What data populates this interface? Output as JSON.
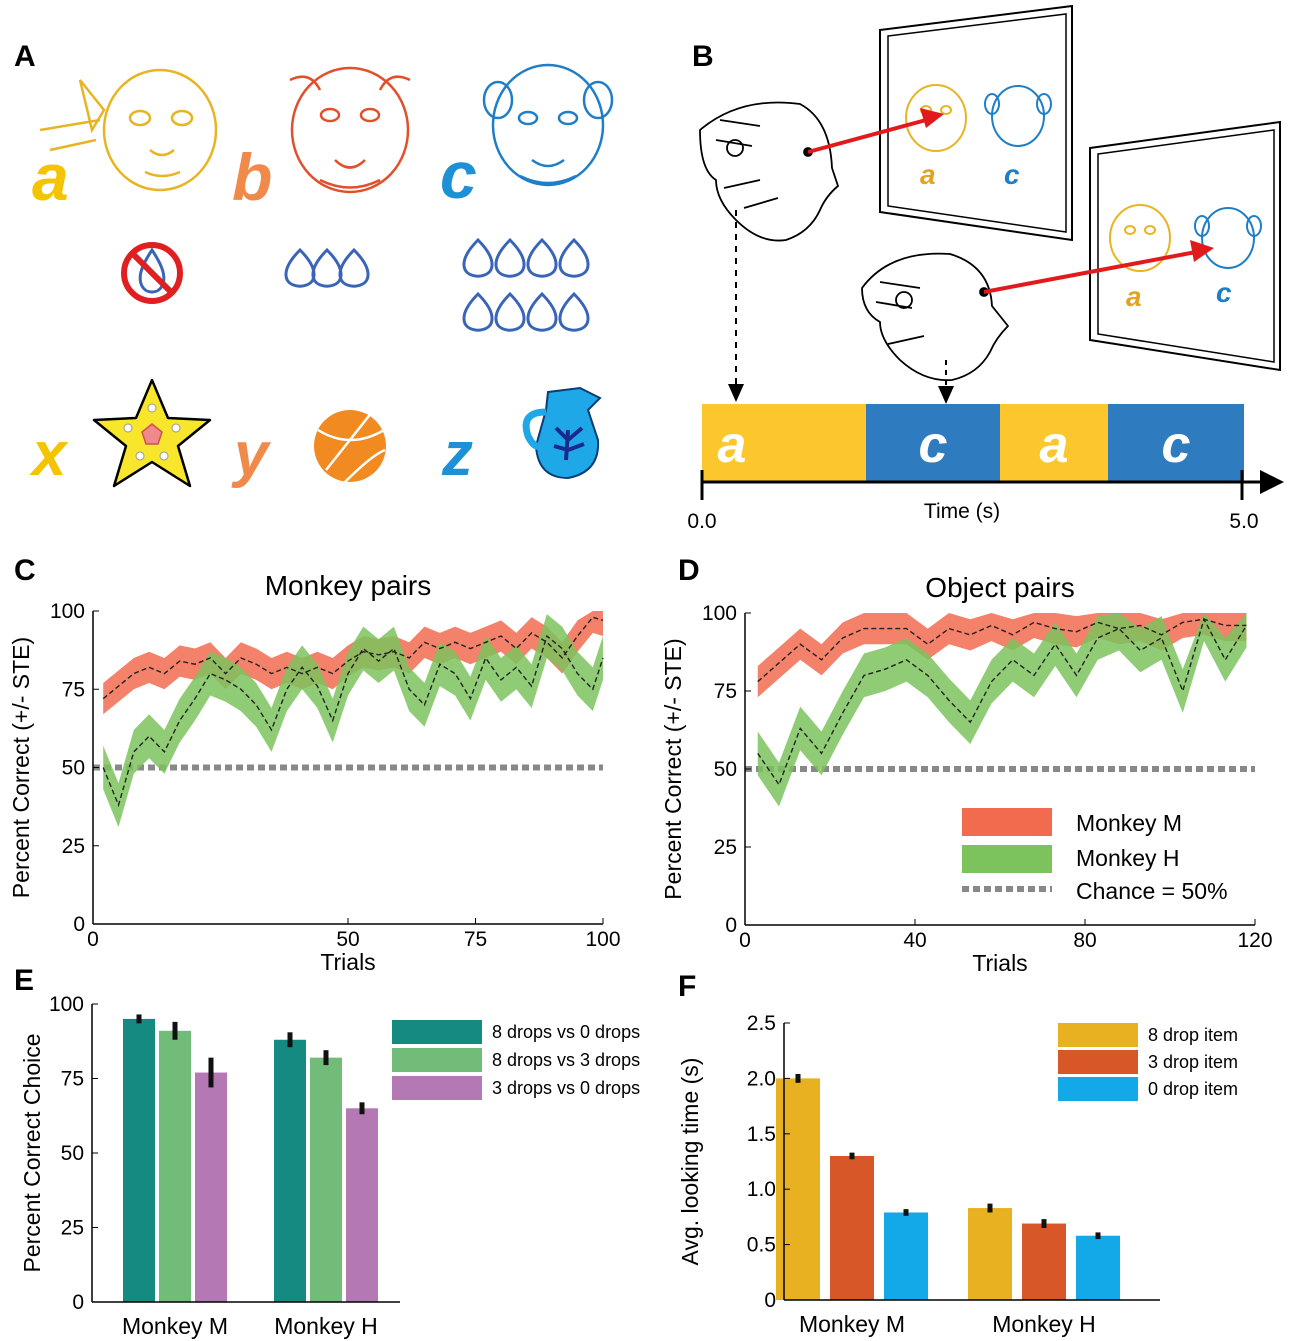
{
  "panel_labels": {
    "a": "A",
    "b": "B",
    "c": "C",
    "d": "D",
    "e": "E",
    "f": "F"
  },
  "panel_a": {
    "face_letters": [
      "a",
      "b",
      "c"
    ],
    "object_letters": [
      "x",
      "y",
      "z"
    ],
    "drop_counts": [
      0,
      3,
      8
    ],
    "colors": {
      "a": "#f5c400",
      "b": "#f08a4b",
      "c": "#1e90d6",
      "drop": "#3a64b8",
      "no": "#e02020"
    },
    "icons": [
      "golden-monkey-face-icon",
      "red-monkey-face-icon",
      "blue-monkey-face-icon",
      "no-drop-icon",
      "three-drops-icon",
      "eight-drops-icon",
      "starfish-icon",
      "basketball-icon",
      "pitcher-icon"
    ]
  },
  "panel_b": {
    "screen1_letters": [
      "a",
      "c"
    ],
    "screen2_letters": [
      "a",
      "c"
    ],
    "timeline_letters": [
      "a",
      "c",
      "a",
      "c"
    ],
    "timeline_colors": [
      "#fcc72d",
      "#2f7bc0",
      "#fcc72d",
      "#2f7bc0"
    ],
    "time_start": "0.0",
    "time_end": "5.0",
    "time_label": "Time (s)",
    "icons": [
      "monkey-viewer-icon",
      "screen-icon",
      "gaze-arrow-icon"
    ]
  },
  "chart_data": [
    {
      "panel": "C",
      "type": "line",
      "title": "Monkey pairs",
      "xlabel": "Trials",
      "ylabel": "Percent Correct (+/- STE)",
      "xlim": [
        0,
        100
      ],
      "ylim": [
        0,
        100
      ],
      "xticks": [
        "0",
        "50",
        "75",
        "100"
      ],
      "yticks": [
        "0",
        "25",
        "50",
        "75",
        "100"
      ],
      "chance": 50,
      "series": [
        {
          "name": "Monkey M",
          "color": "#f26b4f",
          "x": [
            2,
            5,
            8,
            11,
            14,
            17,
            20,
            23,
            26,
            29,
            32,
            35,
            38,
            41,
            44,
            47,
            50,
            53,
            56,
            59,
            62,
            65,
            68,
            71,
            74,
            77,
            80,
            83,
            86,
            89,
            92,
            95,
            98,
            100
          ],
          "y": [
            72,
            76,
            80,
            82,
            80,
            84,
            83,
            85,
            80,
            85,
            83,
            80,
            82,
            80,
            82,
            80,
            84,
            87,
            86,
            87,
            85,
            90,
            88,
            90,
            88,
            90,
            92,
            88,
            93,
            90,
            85,
            92,
            98,
            97
          ],
          "ste": [
            5,
            5,
            5,
            5,
            5,
            5,
            5,
            5,
            5,
            5,
            5,
            5,
            5,
            5,
            5,
            5,
            5,
            5,
            5,
            5,
            5,
            5,
            5,
            5,
            5,
            5,
            5,
            5,
            5,
            5,
            5,
            5,
            5,
            5
          ]
        },
        {
          "name": "Monkey H",
          "color": "#7cc35d",
          "x": [
            2,
            5,
            8,
            11,
            14,
            17,
            20,
            23,
            26,
            29,
            32,
            35,
            38,
            41,
            44,
            47,
            50,
            53,
            56,
            59,
            62,
            65,
            68,
            71,
            74,
            77,
            80,
            83,
            86,
            89,
            92,
            95,
            98,
            100
          ],
          "y": [
            50,
            38,
            55,
            60,
            55,
            65,
            72,
            80,
            78,
            75,
            70,
            62,
            75,
            82,
            76,
            65,
            80,
            88,
            84,
            88,
            75,
            70,
            83,
            80,
            72,
            85,
            78,
            82,
            76,
            92,
            88,
            80,
            75,
            85
          ],
          "ste": [
            7,
            7,
            7,
            7,
            7,
            7,
            7,
            7,
            7,
            7,
            7,
            7,
            7,
            7,
            7,
            7,
            7,
            7,
            7,
            7,
            7,
            7,
            7,
            7,
            7,
            7,
            7,
            7,
            7,
            7,
            7,
            7,
            7,
            7
          ]
        }
      ]
    },
    {
      "panel": "D",
      "type": "line",
      "title": "Object pairs",
      "xlabel": "Trials",
      "ylabel": "Percent Correct (+/- STE)",
      "xlim": [
        0,
        120
      ],
      "ylim": [
        0,
        100
      ],
      "xticks": [
        "0",
        "40",
        "80",
        "120"
      ],
      "yticks": [
        "0",
        "25",
        "50",
        "75",
        "100"
      ],
      "chance": 50,
      "series": [
        {
          "name": "Monkey M",
          "color": "#f26b4f",
          "x": [
            3,
            8,
            13,
            18,
            23,
            28,
            33,
            38,
            43,
            48,
            53,
            58,
            63,
            68,
            73,
            78,
            83,
            88,
            93,
            98,
            103,
            108,
            113,
            118
          ],
          "y": [
            78,
            84,
            90,
            85,
            92,
            95,
            95,
            95,
            90,
            95,
            93,
            96,
            93,
            97,
            95,
            94,
            97,
            95,
            96,
            93,
            97,
            98,
            96,
            96
          ],
          "ste": [
            5,
            5,
            5,
            5,
            5,
            5,
            5,
            5,
            5,
            5,
            5,
            5,
            5,
            5,
            5,
            5,
            5,
            5,
            5,
            5,
            5,
            5,
            5,
            5
          ]
        },
        {
          "name": "Monkey H",
          "color": "#7cc35d",
          "x": [
            3,
            8,
            13,
            18,
            23,
            28,
            33,
            38,
            43,
            48,
            53,
            58,
            63,
            68,
            73,
            78,
            83,
            88,
            93,
            98,
            103,
            108,
            113,
            118
          ],
          "y": [
            55,
            45,
            63,
            55,
            68,
            80,
            82,
            85,
            80,
            72,
            65,
            78,
            85,
            80,
            90,
            80,
            92,
            95,
            88,
            92,
            75,
            98,
            85,
            96
          ],
          "ste": [
            7,
            7,
            7,
            7,
            7,
            7,
            7,
            7,
            7,
            7,
            7,
            7,
            7,
            7,
            7,
            7,
            7,
            7,
            7,
            7,
            7,
            7,
            7,
            7
          ]
        }
      ],
      "legend": [
        "Monkey M",
        "Monkey H",
        "Chance = 50%"
      ]
    },
    {
      "panel": "E",
      "type": "bar",
      "ylabel": "Percent Correct Choice",
      "ylim": [
        0,
        100
      ],
      "yticks": [
        "0",
        "25",
        "50",
        "75",
        "100"
      ],
      "categories": [
        "Monkey M",
        "Monkey H"
      ],
      "series": [
        {
          "name": "8 drops vs 0 drops",
          "color": "#148a80",
          "values": [
            95,
            88
          ],
          "err": [
            1.5,
            2.5
          ]
        },
        {
          "name": "8 drops vs 3 drops",
          "color": "#70bc78",
          "values": [
            91,
            82
          ],
          "err": [
            3,
            2.5
          ]
        },
        {
          "name": "3 drops vs 0 drops",
          "color": "#b478b4",
          "values": [
            77,
            65
          ],
          "err": [
            5,
            2
          ]
        }
      ]
    },
    {
      "panel": "F",
      "type": "bar",
      "ylabel": "Avg. looking time (s)",
      "ylim": [
        0,
        2.5
      ],
      "yticks": [
        "0",
        "0.5",
        "1.0",
        "1.5",
        "2.0",
        "2.5"
      ],
      "categories": [
        "Monkey M",
        "Monkey H"
      ],
      "series": [
        {
          "name": "8 drop item",
          "color": "#e8b122",
          "values": [
            2.0,
            0.83
          ],
          "err": [
            0.04,
            0.04
          ]
        },
        {
          "name": "3 drop item",
          "color": "#d85729",
          "values": [
            1.3,
            0.69
          ],
          "err": [
            0.03,
            0.04
          ]
        },
        {
          "name": "0 drop item",
          "color": "#13a8e8",
          "values": [
            0.79,
            0.58
          ],
          "err": [
            0.03,
            0.03
          ]
        }
      ]
    }
  ]
}
